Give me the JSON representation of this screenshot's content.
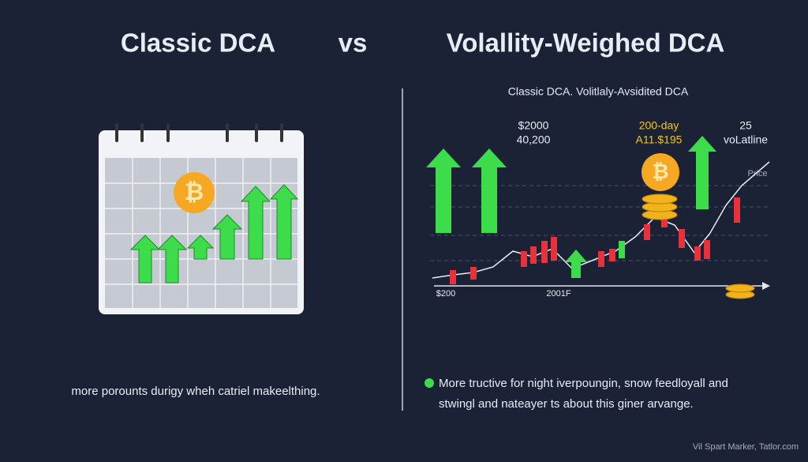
{
  "header": {
    "left_title": "Classic DCA",
    "vs": "vs",
    "right_title": "Volallity-Weighed DCA"
  },
  "left": {
    "caption": "more porounts durigy wheh catriel makeelthing."
  },
  "right": {
    "subtitle": "Classic DCA. Volitlaly-Avsidited DCA",
    "label_a": "$2000",
    "label_a2": "40,200",
    "label_b": "200-day",
    "label_b2": "A11.$195",
    "label_c": "25",
    "label_c2": "voLatline",
    "price": "Price",
    "axis_left": "$200",
    "axis_mid": "2001F",
    "bullet_line1": "More tructive for night iverpoungin, snow feedloyall and",
    "bullet_line2": "stwingl and nateayer ts about this giner arvange."
  },
  "footer": "Vil Spart Marker, Tatlor.com"
}
